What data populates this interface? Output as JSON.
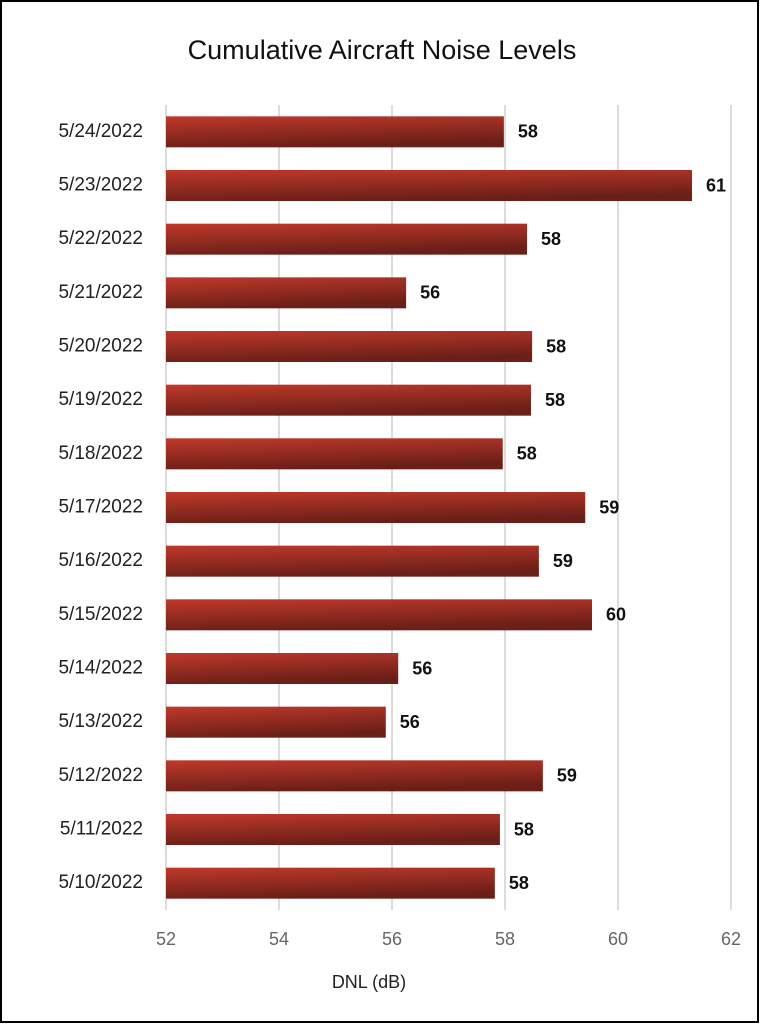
{
  "chart_data": {
    "type": "bar",
    "orientation": "horizontal",
    "title": "Cumulative Aircraft Noise Levels",
    "x_label": "DNL (dB)",
    "categories": [
      "5/24/2022",
      "5/23/2022",
      "5/22/2022",
      "5/21/2022",
      "5/20/2022",
      "5/19/2022",
      "5/18/2022",
      "5/17/2022",
      "5/16/2022",
      "5/15/2022",
      "5/14/2022",
      "5/13/2022",
      "5/12/2022",
      "5/11/2022",
      "5/10/2022"
    ],
    "values": [
      57.98,
      61.31,
      58.39,
      56.25,
      58.48,
      58.46,
      57.96,
      59.42,
      58.6,
      59.54,
      56.11,
      55.89,
      58.67,
      57.91,
      57.82
    ],
    "value_labels": [
      "58",
      "61",
      "58",
      "56",
      "58",
      "58",
      "58",
      "59",
      "59",
      "60",
      "56",
      "56",
      "59",
      "58",
      "58"
    ],
    "color": "#c0392b",
    "xlim": [
      52,
      62
    ],
    "xticks": [
      52,
      54,
      56,
      58,
      60,
      62
    ],
    "grid": true
  }
}
